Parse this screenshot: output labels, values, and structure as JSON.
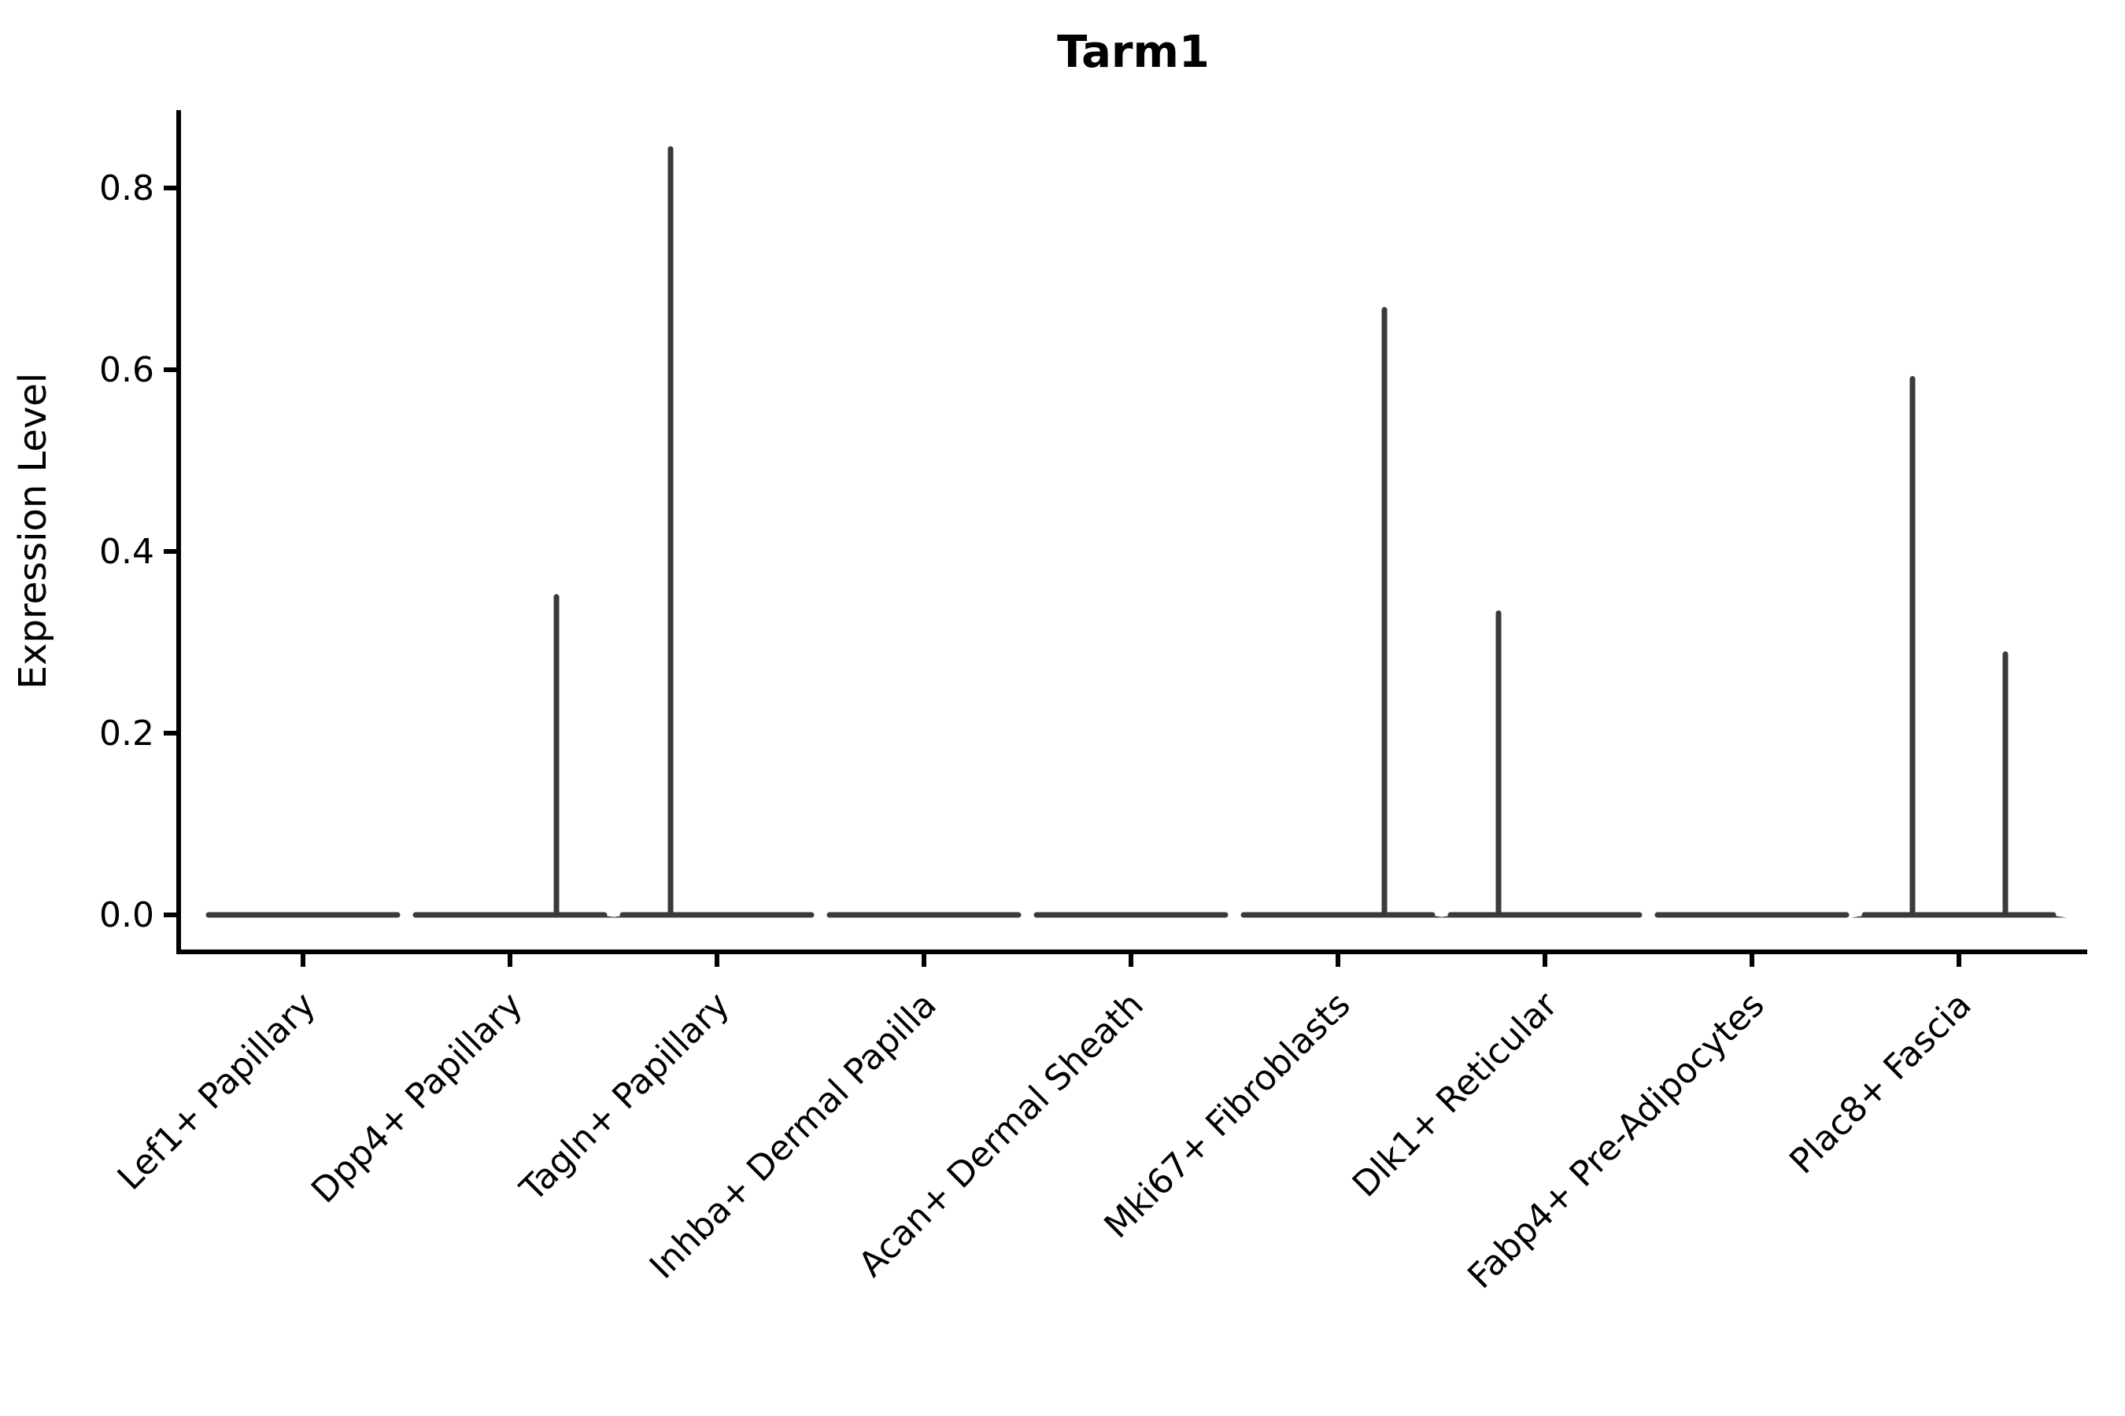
{
  "chart_data": {
    "type": "violin",
    "title": "Tarm1",
    "xlabel": "",
    "ylabel": "Expression Level",
    "ylim": [
      0,
      0.89
    ],
    "grid": false,
    "legend": null,
    "y_ticks": [
      {
        "value": 0.0,
        "label": "0.0"
      },
      {
        "value": 0.2,
        "label": "0.2"
      },
      {
        "value": 0.4,
        "label": "0.4"
      },
      {
        "value": 0.6,
        "label": "0.6"
      },
      {
        "value": 0.8,
        "label": "0.8"
      }
    ],
    "categories": [
      "Lef1+ Papillary",
      "Dpp4+ Papillary",
      "Tagln+ Papillary",
      "Inhba+ Dermal Papilla",
      "Acan+ Dermal Sheath",
      "Mki67+ Fibroblasts",
      "Dlk1+ Reticular",
      "Fabp4+ Pre-Adipocytes",
      "Plac8+ Fascia"
    ],
    "violins": [
      {
        "category": "Lef1+ Papillary",
        "bulk_value": 0.0,
        "spikes": []
      },
      {
        "category": "Dpp4+ Papillary",
        "bulk_value": 0.0,
        "spikes": [
          {
            "side": 1,
            "max": 0.35
          }
        ]
      },
      {
        "category": "Tagln+ Papillary",
        "bulk_value": 0.0,
        "spikes": [
          {
            "side": -1,
            "max": 0.843
          }
        ]
      },
      {
        "category": "Inhba+ Dermal Papilla",
        "bulk_value": 0.0,
        "spikes": []
      },
      {
        "category": "Acan+ Dermal Sheath",
        "bulk_value": 0.0,
        "spikes": []
      },
      {
        "category": "Mki67+ Fibroblasts",
        "bulk_value": 0.0,
        "spikes": [
          {
            "side": 1,
            "max": 0.666
          }
        ]
      },
      {
        "category": "Dlk1+ Reticular",
        "bulk_value": 0.0,
        "spikes": [
          {
            "side": -1,
            "max": 0.332
          }
        ]
      },
      {
        "category": "Fabp4+ Pre-Adipocytes",
        "bulk_value": 0.0,
        "spikes": []
      },
      {
        "category": "Plac8+ Fascia",
        "bulk_value": 0.0,
        "spikes": [
          {
            "side": -1,
            "max": 0.59
          },
          {
            "side": 1,
            "max": 0.287
          }
        ]
      }
    ],
    "colors": {
      "violin_stroke": "#3a3a3a",
      "axis": "#000000",
      "text": "#000000",
      "background": "#ffffff"
    }
  }
}
